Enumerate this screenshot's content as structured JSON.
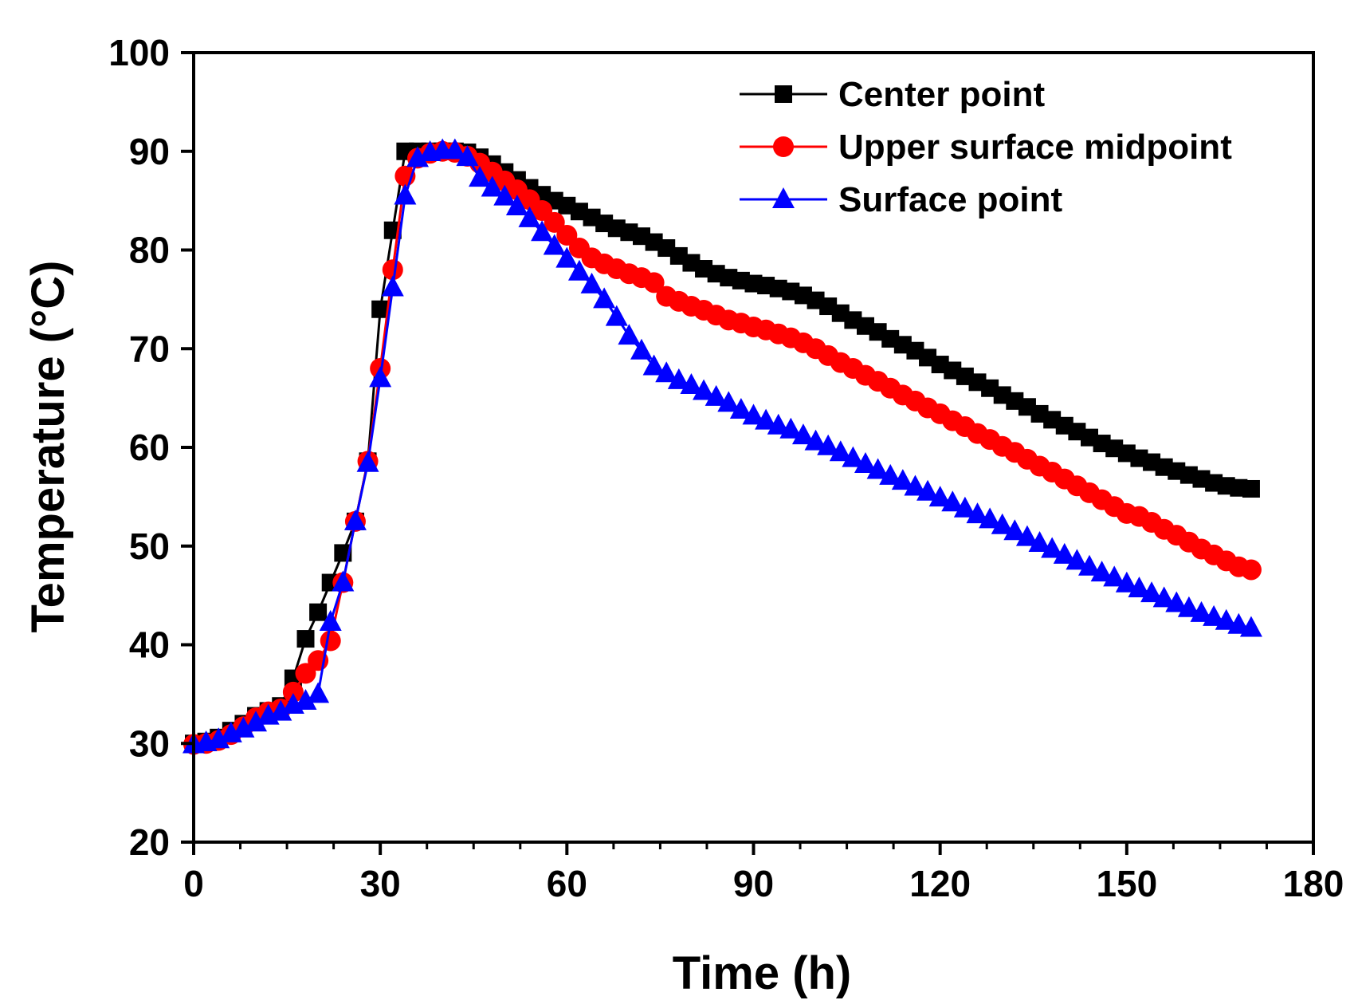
{
  "chart_data": {
    "type": "line",
    "title": "",
    "xlabel": "Time (h)",
    "ylabel": "Temperature (°C)",
    "xlim": [
      0,
      180
    ],
    "ylim": [
      20,
      100
    ],
    "xticks": [
      0,
      30,
      60,
      90,
      120,
      150,
      180
    ],
    "yticks": [
      20,
      30,
      40,
      50,
      60,
      70,
      80,
      90,
      100
    ],
    "xtick_labels": [
      "0",
      "30",
      "60",
      "90",
      "120",
      "150",
      "180"
    ],
    "ytick_labels": [
      "20",
      "30",
      "40",
      "50",
      "60",
      "70",
      "80",
      "90",
      "100"
    ],
    "grid": false,
    "legend_position": "top-right",
    "series": [
      {
        "name": "Center point",
        "color": "#000000",
        "marker": "square",
        "x": [
          0,
          2,
          4,
          6,
          8,
          10,
          12,
          14,
          16,
          18,
          20,
          22,
          24,
          26,
          28,
          30,
          32,
          34,
          36,
          38,
          40,
          42,
          44,
          46,
          48,
          50,
          52,
          54,
          56,
          58,
          60,
          62,
          64,
          66,
          68,
          70,
          72,
          74,
          76,
          78,
          80,
          82,
          84,
          86,
          88,
          90,
          92,
          94,
          96,
          98,
          100,
          102,
          104,
          106,
          108,
          110,
          112,
          114,
          116,
          118,
          120,
          122,
          124,
          126,
          128,
          130,
          132,
          134,
          136,
          138,
          140,
          142,
          144,
          146,
          148,
          150,
          152,
          154,
          156,
          158,
          160,
          162,
          164,
          166,
          168,
          170
        ],
        "y": [
          30,
          30.2,
          30.6,
          31.3,
          32,
          32.8,
          33.3,
          33.8,
          36.6,
          40.6,
          43.3,
          46.3,
          49.3,
          52.5,
          58.6,
          74,
          82,
          90,
          90,
          90,
          90,
          90,
          89.9,
          89.4,
          88.7,
          87.9,
          87.1,
          86.3,
          85.6,
          85,
          84.5,
          83.9,
          83.3,
          82.7,
          82.2,
          81.8,
          81.4,
          80.8,
          80.2,
          79.4,
          78.7,
          78.1,
          77.6,
          77.2,
          76.9,
          76.6,
          76.4,
          76.1,
          75.8,
          75.4,
          74.9,
          74.3,
          73.6,
          72.9,
          72.3,
          71.7,
          71,
          70.4,
          69.8,
          69.1,
          68.4,
          67.8,
          67.2,
          66.6,
          66,
          65.3,
          64.7,
          64.1,
          63.4,
          62.8,
          62.2,
          61.6,
          61,
          60.4,
          59.9,
          59.4,
          58.9,
          58.5,
          58,
          57.6,
          57.2,
          56.8,
          56.4,
          56.1,
          55.9,
          55.8
        ]
      },
      {
        "name": "Upper surface midpoint",
        "color": "#ff0000",
        "marker": "circle",
        "x": [
          0,
          2,
          4,
          6,
          8,
          10,
          12,
          14,
          16,
          18,
          20,
          22,
          24,
          26,
          28,
          30,
          32,
          34,
          36,
          38,
          40,
          42,
          44,
          46,
          48,
          50,
          52,
          54,
          56,
          58,
          60,
          62,
          64,
          66,
          68,
          70,
          72,
          74,
          76,
          78,
          80,
          82,
          84,
          86,
          88,
          90,
          92,
          94,
          96,
          98,
          100,
          102,
          104,
          106,
          108,
          110,
          112,
          114,
          116,
          118,
          120,
          122,
          124,
          126,
          128,
          130,
          132,
          134,
          136,
          138,
          140,
          142,
          144,
          146,
          148,
          150,
          152,
          154,
          156,
          158,
          160,
          162,
          164,
          166,
          168,
          170
        ],
        "y": [
          29.9,
          30,
          30.3,
          30.9,
          31.7,
          32.6,
          33.2,
          33.5,
          35.2,
          37.1,
          38.4,
          40.4,
          46.3,
          52.5,
          58.6,
          68,
          78,
          87.5,
          89.3,
          89.8,
          90,
          89.9,
          89.5,
          88.8,
          87.9,
          87,
          86.1,
          85.1,
          84,
          82.8,
          81.5,
          80.2,
          79.2,
          78.6,
          78.1,
          77.6,
          77.2,
          76.7,
          75.3,
          74.8,
          74.3,
          73.9,
          73.4,
          72.9,
          72.6,
          72.2,
          71.9,
          71.5,
          71.1,
          70.6,
          70,
          69.3,
          68.6,
          68,
          67.3,
          66.7,
          66,
          65.3,
          64.7,
          64,
          63.4,
          62.7,
          62.1,
          61.4,
          60.8,
          60.1,
          59.5,
          58.8,
          58.1,
          57.5,
          56.8,
          56.1,
          55.4,
          54.7,
          54,
          53.3,
          53,
          52.4,
          51.7,
          51.1,
          50.4,
          49.7,
          49.1,
          48.5,
          47.9,
          47.6
        ]
      },
      {
        "name": "Surface point",
        "color": "#0000ff",
        "marker": "triangle",
        "x": [
          0,
          2,
          4,
          6,
          8,
          10,
          12,
          14,
          16,
          18,
          20,
          22,
          24,
          26,
          28,
          30,
          32,
          34,
          36,
          38,
          40,
          42,
          44,
          46,
          48,
          50,
          52,
          54,
          56,
          58,
          60,
          62,
          64,
          66,
          68,
          70,
          72,
          74,
          76,
          78,
          80,
          82,
          84,
          86,
          88,
          90,
          92,
          94,
          96,
          98,
          100,
          102,
          104,
          106,
          108,
          110,
          112,
          114,
          116,
          118,
          120,
          122,
          124,
          126,
          128,
          130,
          132,
          134,
          136,
          138,
          140,
          142,
          144,
          146,
          148,
          150,
          152,
          154,
          156,
          158,
          160,
          162,
          164,
          166,
          168,
          170
        ],
        "y": [
          29.9,
          30.1,
          30.4,
          31,
          31.5,
          32.1,
          32.8,
          33.2,
          33.9,
          34.3,
          35,
          42.3,
          46.3,
          52.5,
          58.4,
          67,
          76.2,
          85.5,
          89.3,
          89.9,
          90.1,
          90.1,
          89.4,
          87.3,
          86.3,
          85.4,
          84.4,
          83.2,
          81.8,
          80.4,
          79.1,
          77.8,
          76.5,
          75,
          73.2,
          71.3,
          69.8,
          68.2,
          67.5,
          66.8,
          66.3,
          65.7,
          65.1,
          64.5,
          63.8,
          63.2,
          62.7,
          62.2,
          61.8,
          61.2,
          60.6,
          60.1,
          59.5,
          58.9,
          58.3,
          57.7,
          57.1,
          56.6,
          56,
          55.5,
          54.9,
          54.4,
          53.8,
          53.2,
          52.7,
          52.1,
          51.5,
          50.9,
          50.3,
          49.7,
          49.1,
          48.5,
          47.9,
          47.3,
          46.8,
          46.2,
          45.7,
          45.2,
          44.7,
          44.2,
          43.7,
          43.2,
          42.8,
          42.4,
          42,
          41.7
        ]
      }
    ]
  }
}
